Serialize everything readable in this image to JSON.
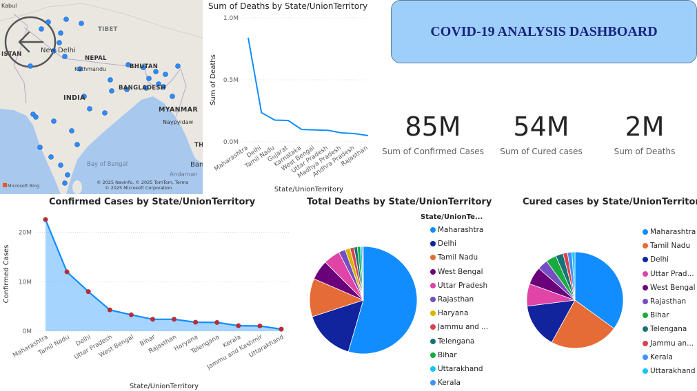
{
  "header": {
    "title": "COVID-19 ANALYSIS DASHBOARD"
  },
  "kpis": [
    {
      "value": "85M",
      "label": "Sum of Confirmed Cases"
    },
    {
      "value": "54M",
      "label": "Sum of Cured cases"
    },
    {
      "value": "2M",
      "label": "Sum of Deaths"
    }
  ],
  "map": {
    "labels": {
      "kabul": "Kabul",
      "stan": "ISTAN",
      "newdelhi": "New Delhi",
      "tibet": "TIBET",
      "nepal": "NEPAL",
      "bhutan": "BHUTAN",
      "kathmandu": "Kathmandu",
      "bangladesh": "BANGLADESH",
      "india": "INDIA",
      "myanmar": "MYANMAR",
      "naypyidaw": "Naypyidaw",
      "bay": "Bay of Bengal",
      "andaman": "Andaman",
      "ban": "Ban",
      "th": "TH"
    },
    "attribution1": "© 2025 NavInfo, © 2025 TomTom, Terms",
    "attribution2": "© 2025 Microsoft Corporation",
    "logo": "Microsoft Bing",
    "colors": {
      "land": "#eae7e1",
      "water": "#a8c8ee",
      "dot": "#2e8bff"
    }
  },
  "chart_data": [
    {
      "type": "line",
      "title": "Sum of Deaths by State/UnionTerritory",
      "xlabel": "State/UnionTerritory",
      "ylabel": "Sum of Deaths",
      "ylim": [
        0,
        1000000
      ],
      "yticks": [
        "0.0M",
        "0.5M",
        "1.0M"
      ],
      "categories": [
        "Maharashtra",
        "Delhi",
        "Tamil Nadu",
        "Gujarat",
        "Karnataka",
        "West Bengal",
        "Uttar Pradesh",
        "Madhya Pradesh",
        "Andhra Pradesh",
        "Rajasthan"
      ],
      "values": [
        840000,
        235000,
        175000,
        172000,
        100000,
        96000,
        92000,
        72000,
        66000,
        50000
      ],
      "color": "#118dff"
    },
    {
      "type": "area",
      "title": "Confirmed Cases by State/UnionTerritory",
      "xlabel": "State/UnionTerritory",
      "ylabel": "Confirmed Cases",
      "ylim": [
        0,
        23000000
      ],
      "yticks": [
        "0M",
        "10M",
        "20M"
      ],
      "categories": [
        "Maharashtra",
        "Tamil Nadu",
        "Delhi",
        "Uttar Pradesh",
        "West Bengal",
        "Bihar",
        "Rajasthan",
        "Haryana",
        "Telengana",
        "Kerala",
        "Jammu and Kashmir",
        "Uttarakhand"
      ],
      "values": [
        22600000,
        12000000,
        8000000,
        4300000,
        3300000,
        2400000,
        2400000,
        1800000,
        1750000,
        1100000,
        1050000,
        400000
      ],
      "color": "#118dff",
      "marker_color": "#b22f3c"
    },
    {
      "type": "pie",
      "title": "Total Deaths by State/UnionTerritory",
      "legend_title": "State/UnionTe...",
      "legend": "right",
      "slices": [
        {
          "label": "Maharashtra",
          "value": 54.5,
          "color": "#118dff"
        },
        {
          "label": "Delhi",
          "value": 15.5,
          "color": "#12239e"
        },
        {
          "label": "Tamil Nadu",
          "value": 11.5,
          "color": "#e66c37"
        },
        {
          "label": "West Bengal",
          "value": 6.0,
          "color": "#6b007b"
        },
        {
          "label": "Uttar Pradesh",
          "value": 5.0,
          "color": "#e044a7"
        },
        {
          "label": "Rajasthan",
          "value": 2.0,
          "color": "#744ec2"
        },
        {
          "label": "Haryana",
          "value": 1.5,
          "color": "#d9b300"
        },
        {
          "label": "Jammu and ...",
          "value": 1.2,
          "color": "#d64550"
        },
        {
          "label": "Telengana",
          "value": 1.0,
          "color": "#197278"
        },
        {
          "label": "Bihar",
          "value": 0.9,
          "color": "#1aab40"
        },
        {
          "label": "Uttarakhand",
          "value": 0.5,
          "color": "#15c6f4"
        },
        {
          "label": "Kerala",
          "value": 0.4,
          "color": "#4092ff"
        }
      ]
    },
    {
      "type": "pie",
      "title": "Cured cases by State/UnionTerritory",
      "legend": "right",
      "slices": [
        {
          "label": "Maharashtra",
          "value": 35.0,
          "color": "#118dff"
        },
        {
          "label": "Tamil Nadu",
          "value": 23.0,
          "color": "#e66c37"
        },
        {
          "label": "Delhi",
          "value": 15.0,
          "color": "#12239e"
        },
        {
          "label": "Uttar Prad...",
          "value": 7.5,
          "color": "#e044a7"
        },
        {
          "label": "West Bengal",
          "value": 6.0,
          "color": "#6b007b"
        },
        {
          "label": "Rajasthan",
          "value": 3.5,
          "color": "#744ec2"
        },
        {
          "label": "Bihar",
          "value": 3.5,
          "color": "#1aab40"
        },
        {
          "label": "Telengana",
          "value": 2.5,
          "color": "#197278"
        },
        {
          "label": "Jammu an...",
          "value": 1.5,
          "color": "#d64550"
        },
        {
          "label": "Kerala",
          "value": 1.5,
          "color": "#4092ff"
        },
        {
          "label": "Uttarakhand",
          "value": 1.0,
          "color": "#15c6f4"
        }
      ]
    }
  ]
}
